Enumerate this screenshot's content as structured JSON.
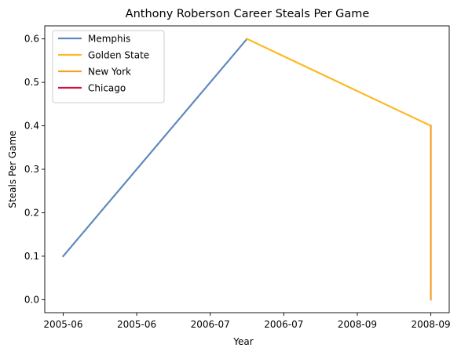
{
  "chart_data": {
    "type": "line",
    "title": "Anthony Roberson Career Steals Per Game",
    "xlabel": "Year",
    "ylabel": "Steals Per Game",
    "x_ticks": [
      "2005-06",
      "2005-06",
      "2006-07",
      "2006-07",
      "2008-09",
      "2008-09"
    ],
    "y_ticks": [
      "0.0",
      "0.1",
      "0.2",
      "0.3",
      "0.4",
      "0.5",
      "0.6"
    ],
    "ylim": [
      -0.03,
      0.63
    ],
    "x_index_range": [
      -0.25,
      5.25
    ],
    "grid": false,
    "legend_position": "upper-left",
    "series": [
      {
        "name": "Memphis",
        "color": "#6089bb",
        "x": [
          0,
          2.5
        ],
        "y": [
          0.1,
          0.6
        ]
      },
      {
        "name": "Golden State",
        "color": "#fdb927",
        "x": [
          2.5,
          5
        ],
        "y": [
          0.6,
          0.4
        ]
      },
      {
        "name": "New York",
        "color": "#f5a02e",
        "x": [
          5,
          5
        ],
        "y": [
          0.4,
          0.0
        ]
      },
      {
        "name": "Chicago",
        "color": "#ce1141",
        "x": [],
        "y": []
      }
    ]
  }
}
